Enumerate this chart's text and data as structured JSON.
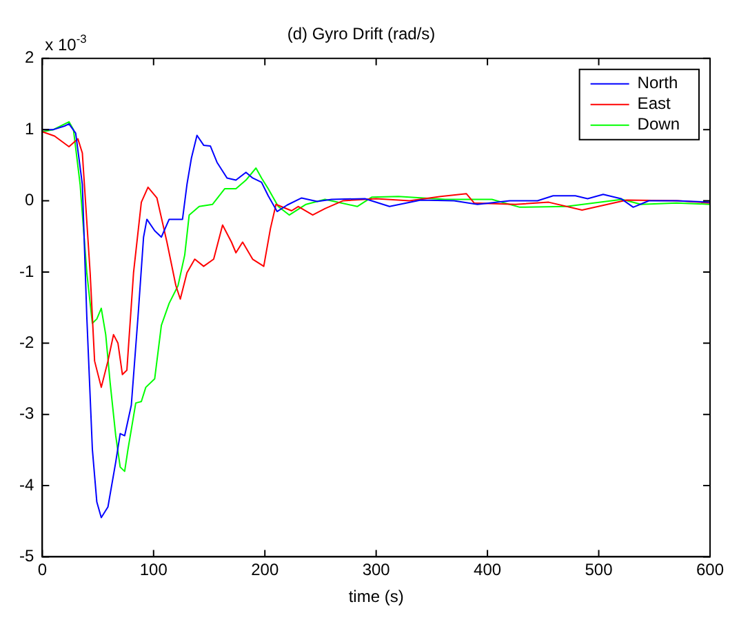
{
  "chart_data": {
    "type": "line",
    "title": "(d) Gyro Drift (rad/s)",
    "xlabel": "time (s)",
    "annotations": [
      "x 10$^{-3}$"
    ],
    "xlim": [
      0,
      600
    ],
    "xticks": [
      0,
      100,
      200,
      300,
      400,
      500,
      600
    ],
    "ylim": [
      -5,
      2
    ],
    "yticks": [
      -5,
      -4,
      -3,
      -2,
      -1,
      0,
      1,
      2
    ],
    "grid": false,
    "legend": "top right",
    "marker": "none",
    "line_style": "solid",
    "series": [
      {
        "name": "North",
        "color": "#0000ff",
        "x": [
          0,
          10,
          20,
          24,
          30,
          36,
          40,
          45,
          49,
          53,
          59,
          66,
          70,
          74,
          80,
          86,
          91,
          94,
          101,
          107,
          114,
          126,
          130,
          134,
          139,
          145,
          151,
          157,
          166,
          174,
          183,
          189,
          197,
          203,
          211,
          220,
          233,
          247,
          260,
          290,
          312,
          340,
          370,
          391,
          420,
          445,
          459,
          479,
          490,
          504,
          520,
          531,
          545,
          570,
          600
        ],
        "values": [
          1.0,
          1.0,
          1.05,
          1.08,
          0.95,
          0.23,
          -1.63,
          -3.49,
          -4.23,
          -4.45,
          -4.3,
          -3.67,
          -3.27,
          -3.3,
          -2.87,
          -1.63,
          -0.51,
          -0.26,
          -0.42,
          -0.51,
          -0.26,
          -0.26,
          0.23,
          0.6,
          0.92,
          0.78,
          0.77,
          0.54,
          0.32,
          0.29,
          0.4,
          0.32,
          0.26,
          0.07,
          -0.15,
          -0.06,
          0.04,
          -0.01,
          0.02,
          0.03,
          -0.08,
          0.01,
          0.0,
          -0.05,
          0.0,
          0.0,
          0.07,
          0.07,
          0.03,
          0.09,
          0.03,
          -0.09,
          0.0,
          0.0,
          -0.02
        ]
      },
      {
        "name": "East",
        "color": "#ff0000",
        "x": [
          0,
          11,
          24,
          32,
          36,
          43,
          47,
          53,
          59,
          64,
          68,
          72,
          76,
          82,
          89,
          95,
          103,
          112,
          120,
          124,
          130,
          137,
          145,
          154,
          162,
          170,
          174,
          180,
          189,
          199,
          205,
          210,
          224,
          230,
          243,
          254,
          270,
          300,
          330,
          358,
          381,
          388,
          425,
          455,
          485,
          525,
          571,
          600
        ],
        "values": [
          0.97,
          0.91,
          0.76,
          0.87,
          0.67,
          -1.01,
          -2.25,
          -2.62,
          -2.25,
          -1.88,
          -2.0,
          -2.44,
          -2.38,
          -1.01,
          -0.02,
          0.19,
          0.04,
          -0.58,
          -1.19,
          -1.38,
          -1.01,
          -0.82,
          -0.92,
          -0.82,
          -0.34,
          -0.58,
          -0.73,
          -0.58,
          -0.82,
          -0.92,
          -0.39,
          -0.05,
          -0.14,
          -0.08,
          -0.2,
          -0.11,
          0.0,
          0.03,
          0.0,
          0.06,
          0.1,
          -0.03,
          -0.05,
          -0.02,
          -0.13,
          0.01,
          0.0,
          -0.03
        ]
      },
      {
        "name": "Down",
        "color": "#00ff00",
        "x": [
          0,
          10,
          24,
          28,
          34,
          40,
          45,
          49,
          53,
          57,
          61,
          66,
          70,
          74,
          77,
          84,
          89,
          93,
          101,
          107,
          114,
          122,
          128,
          132,
          141,
          153,
          164,
          174,
          183,
          192,
          197,
          203,
          212,
          222,
          237,
          254,
          283,
          296,
          320,
          362,
          404,
          429,
          471,
          521,
          538,
          570,
          600
        ],
        "values": [
          0.97,
          1.0,
          1.11,
          1.0,
          0.23,
          -1.01,
          -1.72,
          -1.66,
          -1.51,
          -1.88,
          -2.56,
          -3.3,
          -3.74,
          -3.8,
          -3.49,
          -2.84,
          -2.82,
          -2.62,
          -2.5,
          -1.75,
          -1.44,
          -1.19,
          -0.76,
          -0.2,
          -0.08,
          -0.05,
          0.17,
          0.17,
          0.29,
          0.46,
          0.32,
          0.17,
          -0.08,
          -0.2,
          -0.05,
          0.02,
          -0.08,
          0.05,
          0.06,
          0.02,
          0.02,
          -0.09,
          -0.08,
          0.02,
          -0.05,
          -0.03,
          -0.05
        ]
      }
    ]
  }
}
